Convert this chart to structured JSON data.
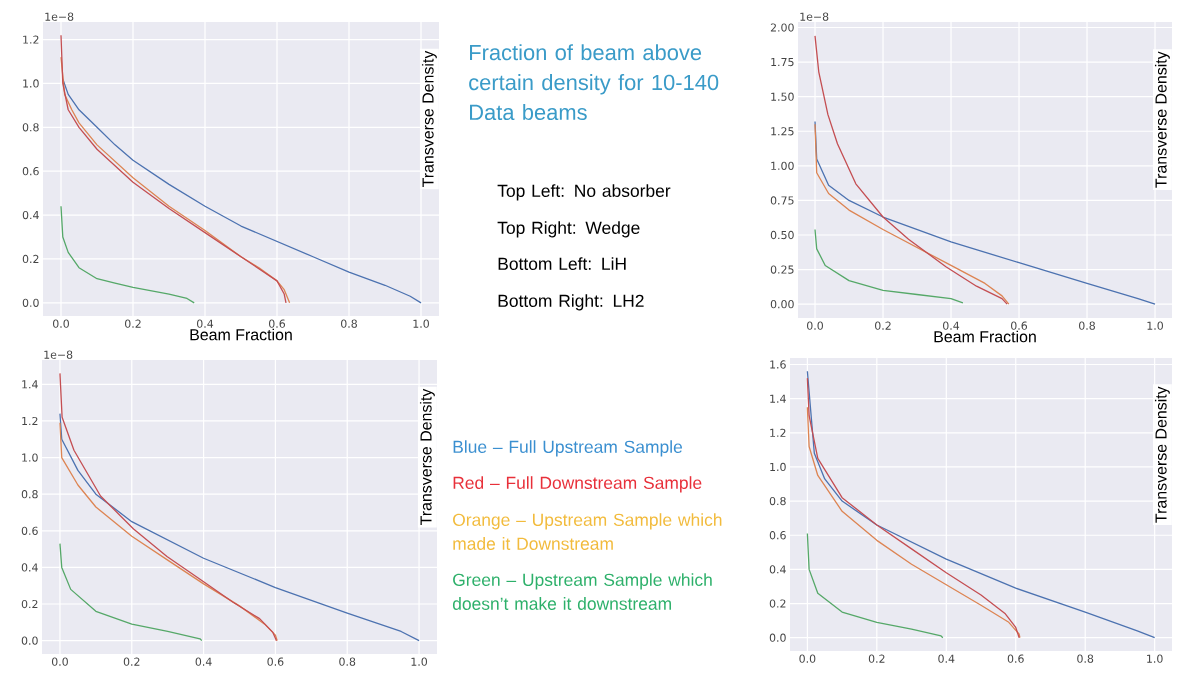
{
  "chart_data": [
    {
      "type": "line",
      "xlabel": "Beam Fraction",
      "ylabel": "Transverse Density",
      "annotations": [
        "1e−8"
      ],
      "grid": true,
      "xlim": [
        -0.05,
        1.05
      ],
      "ylim": [
        -0.06,
        1.28
      ],
      "xticks": [
        {
          "value": 0,
          "label": "0.0"
        },
        {
          "value": 0.2,
          "label": "0.2"
        },
        {
          "value": 0.4,
          "label": "0.4"
        },
        {
          "value": 0.6,
          "label": "0.6"
        },
        {
          "value": 0.8,
          "label": "0.8"
        },
        {
          "value": 1,
          "label": "1.0"
        }
      ],
      "yticks": [
        {
          "value": 0,
          "label": "0.0"
        },
        0.2,
        0.4,
        0.6,
        0.8,
        {
          "value": 1,
          "label": "1.0"
        },
        1.2
      ],
      "series": [
        {
          "color": "#4c72b0",
          "x": [
            0.005,
            0.02,
            0.05,
            0.1,
            0.15,
            0.2,
            0.3,
            0.4,
            0.5,
            0.6,
            0.7,
            0.8,
            0.9,
            0.97,
            1.0
          ],
          "values": [
            1.02,
            0.95,
            0.88,
            0.8,
            0.72,
            0.65,
            0.54,
            0.44,
            0.35,
            0.28,
            0.21,
            0.14,
            0.08,
            0.03,
            0.0
          ]
        },
        {
          "color": "#dd8452",
          "x": [
            0,
            0.01,
            0.03,
            0.05,
            0.1,
            0.2,
            0.3,
            0.4,
            0.5,
            0.55,
            0.6,
            0.62,
            0.635
          ],
          "values": [
            1.12,
            0.95,
            0.88,
            0.82,
            0.72,
            0.57,
            0.44,
            0.33,
            0.21,
            0.16,
            0.1,
            0.06,
            0.0
          ]
        },
        {
          "color": "#c44e52",
          "x": [
            0,
            0.005,
            0.02,
            0.05,
            0.1,
            0.2,
            0.3,
            0.4,
            0.5,
            0.6,
            0.62,
            0.625
          ],
          "values": [
            1.22,
            1.0,
            0.88,
            0.8,
            0.7,
            0.55,
            0.43,
            0.32,
            0.21,
            0.1,
            0.04,
            0.0
          ]
        },
        {
          "color": "#55a868",
          "x": [
            0,
            0.005,
            0.02,
            0.05,
            0.1,
            0.15,
            0.2,
            0.3,
            0.35,
            0.37
          ],
          "values": [
            0.44,
            0.3,
            0.23,
            0.16,
            0.11,
            0.09,
            0.07,
            0.04,
            0.02,
            0.0
          ]
        }
      ]
    },
    {
      "type": "line",
      "xlabel": "Beam Fraction",
      "ylabel": "Transverse Density",
      "annotations": [
        "1e−8"
      ],
      "grid": true,
      "xlim": [
        -0.05,
        1.05
      ],
      "ylim": [
        -0.1,
        2.04
      ],
      "xticks": [
        {
          "value": 0,
          "label": "0.0"
        },
        {
          "value": 0.2,
          "label": "0.2"
        },
        {
          "value": 0.4,
          "label": "0.4"
        },
        {
          "value": 0.6,
          "label": "0.6"
        },
        {
          "value": 0.8,
          "label": "0.8"
        },
        {
          "value": 1,
          "label": "1.0"
        }
      ],
      "yticks": [
        {
          "value": 0,
          "label": "0.00"
        },
        {
          "value": 0.25,
          "label": "0.25"
        },
        {
          "value": 0.5,
          "label": "0.50"
        },
        {
          "value": 0.75,
          "label": "0.75"
        },
        {
          "value": 1,
          "label": "1.00"
        },
        {
          "value": 1.25,
          "label": "1.25"
        },
        {
          "value": 1.5,
          "label": "1.50"
        },
        {
          "value": 1.75,
          "label": "1.75"
        },
        {
          "value": 2,
          "label": "2.00"
        }
      ],
      "series": [
        {
          "color": "#4c72b0",
          "x": [
            0,
            0.005,
            0.04,
            0.1,
            0.2,
            0.4,
            0.6,
            0.8,
            0.95,
            1.0
          ],
          "values": [
            1.32,
            1.05,
            0.86,
            0.75,
            0.63,
            0.45,
            0.3,
            0.15,
            0.04,
            0.0
          ]
        },
        {
          "color": "#dd8452",
          "x": [
            0,
            0.005,
            0.04,
            0.1,
            0.2,
            0.3,
            0.4,
            0.5,
            0.55,
            0.57
          ],
          "values": [
            1.3,
            0.95,
            0.8,
            0.68,
            0.54,
            0.41,
            0.28,
            0.15,
            0.06,
            0.0
          ]
        },
        {
          "color": "#c44e52",
          "x": [
            0,
            0.011,
            0.038,
            0.066,
            0.12,
            0.2,
            0.275,
            0.385,
            0.475,
            0.55,
            0.565
          ],
          "values": [
            1.94,
            1.68,
            1.37,
            1.16,
            0.87,
            0.63,
            0.47,
            0.27,
            0.13,
            0.04,
            0.0
          ]
        },
        {
          "color": "#55a868",
          "x": [
            0,
            0.005,
            0.03,
            0.1,
            0.2,
            0.3,
            0.4,
            0.435
          ],
          "values": [
            0.54,
            0.4,
            0.28,
            0.17,
            0.1,
            0.07,
            0.04,
            0.01
          ]
        }
      ]
    },
    {
      "type": "line",
      "ylabel": "Transverse Density",
      "annotations": [
        "1e−8"
      ],
      "grid": true,
      "xlim": [
        -0.05,
        1.05
      ],
      "ylim": [
        -0.073,
        1.533
      ],
      "xticks": [
        {
          "value": 0,
          "label": "0.0"
        },
        {
          "value": 0.2,
          "label": "0.2"
        },
        {
          "value": 0.4,
          "label": "0.4"
        },
        {
          "value": 0.6,
          "label": "0.6"
        },
        {
          "value": 0.8,
          "label": "0.8"
        },
        {
          "value": 1,
          "label": "1.0"
        }
      ],
      "yticks": [
        {
          "value": 0,
          "label": "0.0"
        },
        0.2,
        0.4,
        0.6,
        0.8,
        {
          "value": 1,
          "label": "1.0"
        },
        1.2,
        1.4
      ],
      "series": [
        {
          "color": "#4c72b0",
          "x": [
            0,
            0.005,
            0.05,
            0.1,
            0.2,
            0.4,
            0.6,
            0.8,
            0.95,
            1.0
          ],
          "values": [
            1.24,
            1.1,
            0.93,
            0.8,
            0.65,
            0.45,
            0.29,
            0.15,
            0.05,
            0.0
          ]
        },
        {
          "color": "#dd8452",
          "x": [
            0,
            0.005,
            0.05,
            0.1,
            0.2,
            0.3,
            0.4,
            0.5,
            0.57,
            0.6,
            0.605
          ],
          "values": [
            1.19,
            1.0,
            0.85,
            0.73,
            0.57,
            0.44,
            0.31,
            0.19,
            0.09,
            0.03,
            0.0
          ]
        },
        {
          "color": "#c44e52",
          "x": [
            0,
            0.006,
            0.039,
            0.113,
            0.205,
            0.298,
            0.39,
            0.482,
            0.556,
            0.593,
            0.603
          ],
          "values": [
            1.46,
            1.22,
            1.04,
            0.79,
            0.61,
            0.46,
            0.335,
            0.21,
            0.12,
            0.045,
            0.0
          ]
        },
        {
          "color": "#55a868",
          "x": [
            0,
            0.005,
            0.03,
            0.1,
            0.2,
            0.3,
            0.39,
            0.395
          ],
          "values": [
            0.53,
            0.4,
            0.28,
            0.16,
            0.09,
            0.05,
            0.01,
            0.0
          ]
        }
      ]
    },
    {
      "type": "line",
      "ylabel": "Transverse Density",
      "grid": true,
      "xlim": [
        -0.05,
        1.05
      ],
      "ylim": [
        -0.078,
        1.638
      ],
      "xticks": [
        {
          "value": 0,
          "label": "0.0"
        },
        {
          "value": 0.2,
          "label": "0.2"
        },
        {
          "value": 0.4,
          "label": "0.4"
        },
        {
          "value": 0.6,
          "label": "0.6"
        },
        {
          "value": 0.8,
          "label": "0.8"
        },
        {
          "value": 1,
          "label": "1.0"
        }
      ],
      "yticks": [
        {
          "value": 0,
          "label": "0.0"
        },
        0.2,
        0.4,
        0.6,
        0.8,
        {
          "value": 1,
          "label": "1.0"
        },
        1.2,
        1.4,
        1.6
      ],
      "series": [
        {
          "color": "#4c72b0",
          "x": [
            0,
            0.02,
            0.05,
            0.1,
            0.2,
            0.4,
            0.6,
            0.8,
            0.95,
            1.0
          ],
          "values": [
            1.56,
            1.08,
            0.93,
            0.8,
            0.66,
            0.46,
            0.29,
            0.15,
            0.04,
            0.0
          ]
        },
        {
          "color": "#dd8452",
          "x": [
            0,
            0.005,
            0.03,
            0.1,
            0.2,
            0.3,
            0.4,
            0.5,
            0.58,
            0.61,
            0.612
          ],
          "values": [
            1.35,
            1.12,
            0.95,
            0.74,
            0.57,
            0.43,
            0.31,
            0.19,
            0.09,
            0.02,
            0.0
          ]
        },
        {
          "color": "#c44e52",
          "x": [
            0,
            0.005,
            0.03,
            0.1,
            0.2,
            0.3,
            0.4,
            0.5,
            0.57,
            0.6,
            0.61
          ],
          "values": [
            1.52,
            1.3,
            1.05,
            0.82,
            0.66,
            0.52,
            0.38,
            0.25,
            0.14,
            0.06,
            0.0
          ]
        },
        {
          "color": "#55a868",
          "x": [
            0,
            0.005,
            0.03,
            0.1,
            0.2,
            0.3,
            0.385,
            0.39
          ],
          "values": [
            0.61,
            0.4,
            0.26,
            0.15,
            0.09,
            0.05,
            0.01,
            0.0
          ]
        }
      ]
    },
    {
      "type": "other",
      "title": "Fraction of beam above certain density for 10-140 Data beams",
      "annotations": [
        "Top Left: No absorber",
        "Top Right: Wedge",
        "Bottom Left: LiH",
        "Bottom Right: LH2",
        "Blue – Full Upstream Sample",
        "Red – Full Downstream Sample",
        "Orange – Upstream Sample which made it Downstream",
        "Green – Upstream Sample which doesn’t make it downstream"
      ],
      "colors": [
        null,
        null,
        null,
        null,
        "#3a8fd0",
        "#e8303a",
        "#f2bb3c",
        "#2db06a"
      ]
    }
  ]
}
